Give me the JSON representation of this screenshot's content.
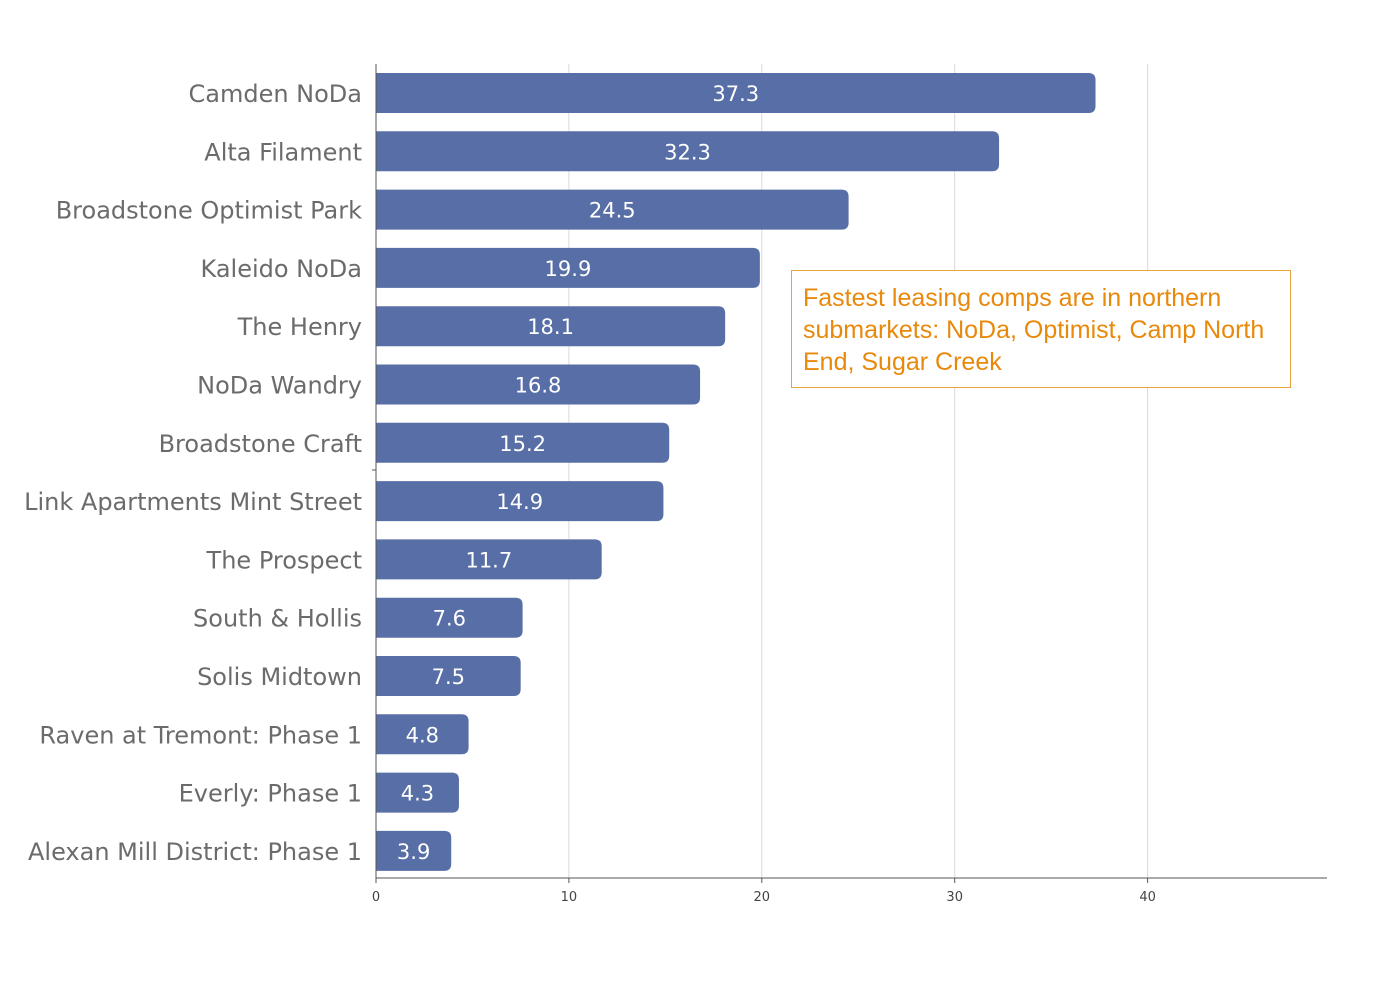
{
  "chart_data": {
    "type": "bar",
    "orientation": "horizontal",
    "categories": [
      "Camden NoDa",
      "Alta Filament",
      "Broadstone Optimist Park",
      "Kaleido NoDa",
      "The Henry",
      "NoDa Wandry",
      "Broadstone Craft",
      "Link Apartments Mint Street",
      "The Prospect",
      "South & Hollis",
      "Solis Midtown",
      "Raven at Tremont: Phase 1",
      "Everly: Phase 1",
      "Alexan Mill District: Phase 1"
    ],
    "values": [
      37.3,
      32.3,
      24.5,
      19.9,
      18.1,
      16.8,
      15.2,
      14.9,
      11.7,
      7.6,
      7.5,
      4.8,
      4.3,
      3.9
    ],
    "value_labels": [
      "37.3",
      "32.3",
      "24.5",
      "19.9",
      "18.1",
      "16.8",
      "15.2",
      "14.9",
      "11.7",
      "7.6",
      "7.5",
      "4.8",
      "4.3",
      "3.9"
    ],
    "xlim": [
      0,
      49.3
    ],
    "xticks": [
      0,
      10,
      20,
      30,
      40
    ],
    "xtick_labels": [
      "0",
      "10",
      "20",
      "30",
      "40"
    ],
    "grid": "vertical",
    "bar_color": "#586ea6",
    "annotation": {
      "text": "Fastest leasing comps are in northern submarkets: NoDa, Optimist, Camp North End, Sugar Creek",
      "color": "#e8890c",
      "border_color": "#e6a23c"
    }
  }
}
